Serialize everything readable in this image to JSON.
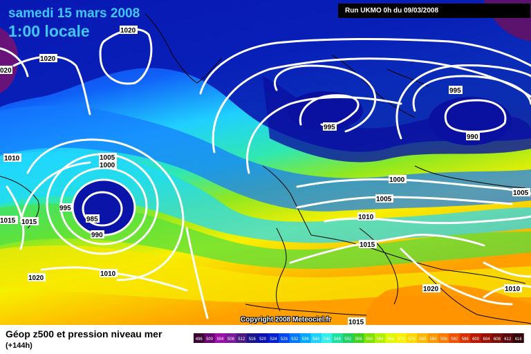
{
  "header": {
    "date": "samedi 15 mars 2008",
    "time": "1:00 locale",
    "run": "Run UKMO 0h du 09/03/2008"
  },
  "map": {
    "copyright": "Copyright 2008 Meteociel.fr",
    "isobar_labels": [
      {
        "id": "iso-1020-greenland",
        "text": "1020"
      },
      {
        "id": "iso-1020-west",
        "text": "1020"
      },
      {
        "id": "iso-1020-edge",
        "text": "020"
      },
      {
        "id": "iso-1010-west",
        "text": "1010"
      },
      {
        "id": "iso-1005-low",
        "text": "1005"
      },
      {
        "id": "iso-1000-low",
        "text": "1000"
      },
      {
        "id": "iso-995-low",
        "text": "995"
      },
      {
        "id": "iso-985-low",
        "text": "985"
      },
      {
        "id": "iso-990-low",
        "text": "990"
      },
      {
        "id": "iso-1015-a",
        "text": "1015"
      },
      {
        "id": "iso-1015-b",
        "text": "1015"
      },
      {
        "id": "iso-1020-atlantic",
        "text": "1020"
      },
      {
        "id": "iso-1010-atlantic",
        "text": "1010"
      },
      {
        "id": "iso-995-north",
        "text": "995"
      },
      {
        "id": "iso-995-ne",
        "text": "995"
      },
      {
        "id": "iso-990-ne",
        "text": "990"
      },
      {
        "id": "iso-1000-europe",
        "text": "1000"
      },
      {
        "id": "iso-1005-europe",
        "text": "1005"
      },
      {
        "id": "iso-1005-east",
        "text": "1005"
      },
      {
        "id": "iso-1010-europe",
        "text": "1010"
      },
      {
        "id": "iso-1015-med",
        "text": "1015"
      },
      {
        "id": "iso-1020-africa",
        "text": "1020"
      },
      {
        "id": "iso-1010-se",
        "text": "1010"
      },
      {
        "id": "iso-1015-bottom",
        "text": "1015"
      }
    ]
  },
  "footer": {
    "title": "Géop z500 et pression niveau mer",
    "subtitle": "(+144h)"
  },
  "legend": {
    "values": [
      "496",
      "500",
      "504",
      "508",
      "512",
      "516",
      "520",
      "524",
      "528",
      "532",
      "536",
      "540",
      "544",
      "548",
      "552",
      "556",
      "560",
      "564",
      "568",
      "572",
      "576",
      "580",
      "584",
      "588",
      "592",
      "596",
      "600",
      "604",
      "608",
      "612",
      "616"
    ],
    "colors": [
      "#3a0030",
      "#6a0070",
      "#9a10a8",
      "#7a1a9a",
      "#4a1a80",
      "#1a1488",
      "#0a10b0",
      "#0020d0",
      "#0048f0",
      "#0078ff",
      "#00a8ff",
      "#20d0ff",
      "#30f0e8",
      "#20e0a0",
      "#20d060",
      "#40d020",
      "#80e000",
      "#b0f000",
      "#e0f800",
      "#f8f000",
      "#ffd800",
      "#ffb800",
      "#ff9800",
      "#ff7800",
      "#f05000",
      "#d83000",
      "#b81800",
      "#981000",
      "#781008",
      "#580810",
      "#300008"
    ]
  }
}
